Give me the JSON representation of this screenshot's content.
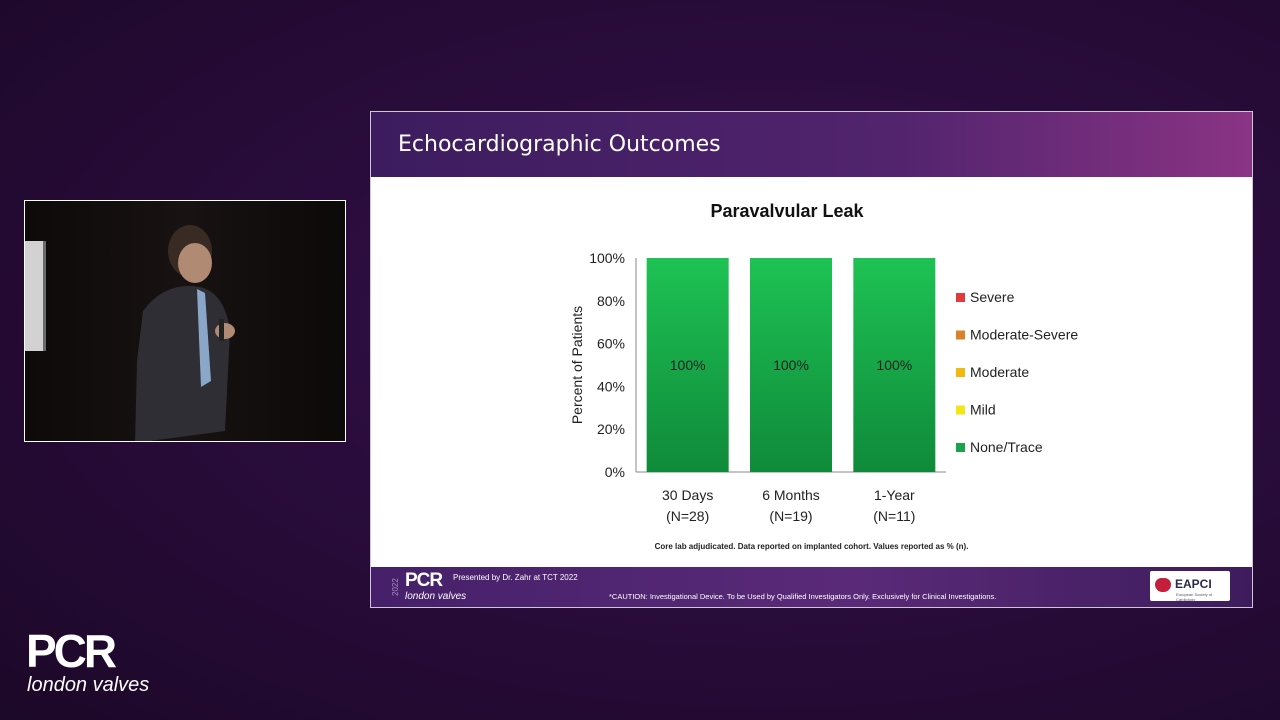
{
  "slide": {
    "title": "Echocardiographic Outcomes",
    "footnote": "Core lab adjudicated. Data reported on implanted cohort. Values reported as % (n).",
    "footer": {
      "year": "2022",
      "logo": "PCR",
      "logo_sub": "london valves",
      "presented_by": "Presented by Dr. Zahr at TCT 2022",
      "caution": "*CAUTION: Investigational Device. To be Used by Qualified Investigators Only. Exclusively for Clinical Investigations.",
      "partner_logo": "EAPCI",
      "partner_sub": "European Society of Cardiology"
    }
  },
  "brand": {
    "logo": "PCR",
    "subtitle": "london valves"
  },
  "colors": {
    "severe": "#e03a3a",
    "moderate_severe": "#d9822b",
    "moderate": "#f2b90f",
    "mild": "#f5e61a",
    "none_trace": "#1aa34a"
  },
  "chart_data": {
    "type": "bar",
    "stacked": true,
    "title": "Paravalvular Leak",
    "xlabel": "",
    "ylabel": "Percent of Patients",
    "ylim": [
      0,
      100
    ],
    "yticks": [
      "0%",
      "20%",
      "40%",
      "60%",
      "80%",
      "100%"
    ],
    "categories": [
      [
        "30 Days",
        "(N=28)"
      ],
      [
        "6 Months",
        "(N=19)"
      ],
      [
        "1-Year",
        "(N=11)"
      ]
    ],
    "series": [
      {
        "name": "Severe",
        "color": "#e03a3a",
        "values": [
          0,
          0,
          0
        ]
      },
      {
        "name": "Moderate-Severe",
        "color": "#d9822b",
        "values": [
          0,
          0,
          0
        ]
      },
      {
        "name": "Moderate",
        "color": "#f2b90f",
        "values": [
          0,
          0,
          0
        ]
      },
      {
        "name": "Mild",
        "color": "#f5e61a",
        "values": [
          0,
          0,
          0
        ]
      },
      {
        "name": "None/Trace",
        "color": "#1aa34a",
        "values": [
          100,
          100,
          100
        ]
      }
    ],
    "data_labels": [
      "100%",
      "100%",
      "100%"
    ],
    "legend_position": "right",
    "grid": false
  }
}
